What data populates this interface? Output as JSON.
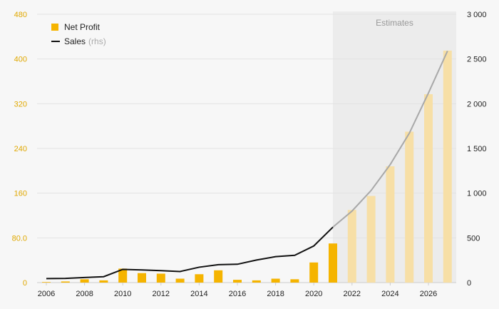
{
  "chart_data": {
    "type": "bar",
    "x": [
      2006,
      2007,
      2008,
      2009,
      2010,
      2011,
      2012,
      2013,
      2014,
      2015,
      2016,
      2017,
      2018,
      2019,
      2020,
      2021,
      2022,
      2023,
      2024,
      2025,
      2026,
      2027
    ],
    "x_tick_labels": [
      "2006",
      "2008",
      "2010",
      "2012",
      "2014",
      "2016",
      "2018",
      "2020",
      "2022",
      "2024",
      "2026"
    ],
    "series": [
      {
        "name": "Net Profit",
        "axis": "left",
        "render": "bar",
        "values": [
          1,
          2,
          6,
          4,
          25,
          17,
          16,
          7,
          15,
          22,
          5,
          4,
          7,
          6,
          36,
          70,
          130,
          155,
          208,
          270,
          337,
          415
        ],
        "estimate_from": 2022
      },
      {
        "name": "Sales",
        "axis": "right",
        "render": "line",
        "values": [
          45,
          47,
          57,
          66,
          148,
          142,
          134,
          124,
          172,
          200,
          205,
          252,
          290,
          305,
          410,
          620,
          800,
          1030,
          1320,
          1670,
          2120,
          2590
        ],
        "estimate_from": 2022
      }
    ],
    "legend": {
      "net_profit": "Net Profit",
      "sales": "Sales",
      "sales_note": "(rhs)",
      "position": "top-left"
    },
    "annotation": "Estimates",
    "estimate_region": [
      2021,
      2027
    ],
    "y_left": {
      "ylim": [
        0,
        480
      ],
      "ticks": [
        0,
        80,
        160,
        240,
        320,
        400,
        480
      ],
      "tick_labels": [
        "0",
        "80.0",
        "160",
        "240",
        "320",
        "400",
        "480"
      ]
    },
    "y_right": {
      "ylim": [
        0,
        3000
      ],
      "ticks": [
        0,
        500,
        1000,
        1500,
        2000,
        2500,
        3000
      ],
      "tick_labels": [
        "0",
        "500",
        "1 000",
        "1 500",
        "2 000",
        "2 500",
        "3 000"
      ]
    },
    "grid": true,
    "colors": {
      "bar": "#f5b400",
      "bar_estimate": "#f7dfa6",
      "line": "#111111",
      "line_estimate": "#a8a8a8",
      "estimate_band": "#ececec",
      "left_tick_text": "#e0a800",
      "right_tick_text": "#222222",
      "grid": "#e3e3e3"
    }
  }
}
